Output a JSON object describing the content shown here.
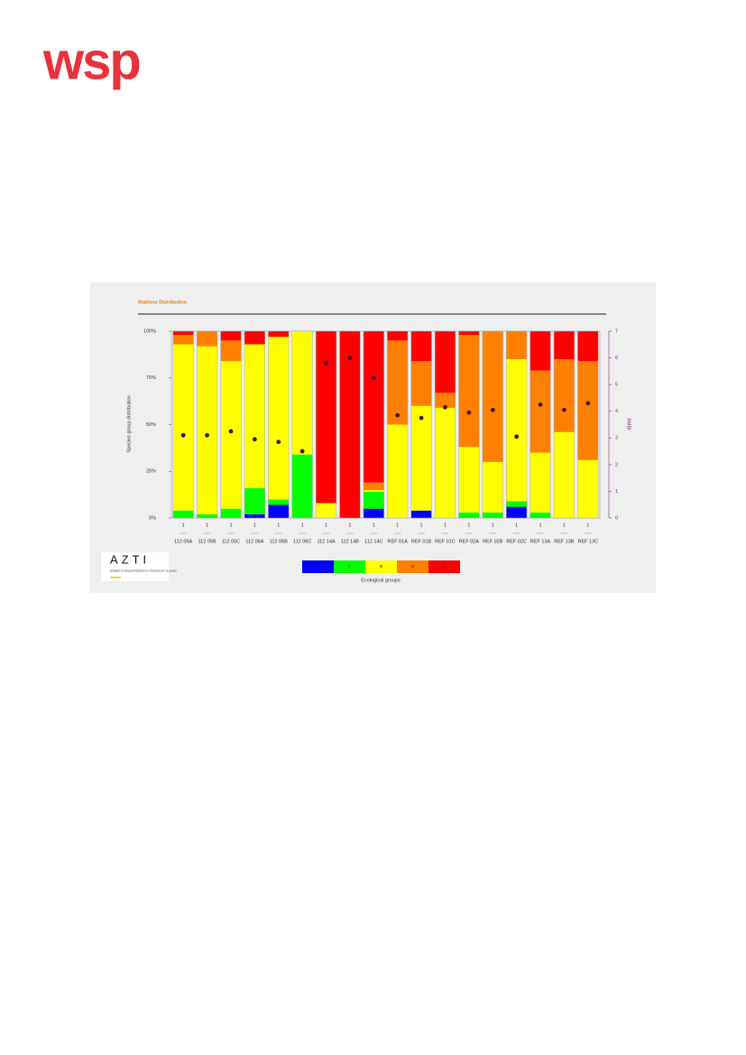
{
  "logos": {
    "wsp": "wsp",
    "azti": "AZTI",
    "azti_tagline": "MEMBER OF BASQUE RESEARCH & TECHNOLOGY ALLIANCE"
  },
  "chart_data": {
    "type": "stacked-bar",
    "title": "Stations Distribution",
    "y_label": "Species group distribution",
    "y2_label": "AMBI",
    "legend_title": "Ecological groups",
    "categories": [
      "112 05A",
      "112 05B",
      "112 05C",
      "112 06A",
      "112 06B",
      "112 06C",
      "112 14A",
      "112 14B",
      "112 14C",
      "REF 01A",
      "REF 01B",
      "REF 01C",
      "REF 02A",
      "REF 02B",
      "REF 02C",
      "REF 13A",
      "REF 13B",
      "REF 13C"
    ],
    "counts": [
      1,
      1,
      1,
      1,
      1,
      1,
      1,
      1,
      1,
      1,
      1,
      1,
      1,
      1,
      1,
      1,
      1,
      1
    ],
    "series": [
      {
        "name": "I",
        "color": "#0000ff",
        "values": [
          0,
          0,
          0,
          2,
          7,
          0,
          0,
          0,
          5,
          0,
          4,
          0,
          0,
          0,
          6,
          0,
          0,
          0
        ]
      },
      {
        "name": "II",
        "color": "#00ff00",
        "values": [
          4,
          2,
          5,
          14,
          3,
          34,
          0,
          0,
          9,
          0,
          0,
          0,
          3,
          3,
          3,
          3,
          0,
          0
        ]
      },
      {
        "name": "III",
        "color": "#ffff00",
        "values": [
          89,
          90,
          79,
          77,
          87,
          66,
          8,
          0,
          1,
          50,
          56,
          59,
          35,
          27,
          76,
          32,
          46,
          31
        ]
      },
      {
        "name": "IV",
        "color": "#ff8000",
        "values": [
          5,
          8,
          11,
          0,
          0,
          0,
          0,
          0,
          4,
          45,
          24,
          8,
          60,
          70,
          15,
          44,
          39,
          53
        ]
      },
      {
        "name": "V",
        "color": "#ff0000",
        "values": [
          2,
          0,
          5,
          7,
          3,
          0,
          92,
          100,
          81,
          5,
          16,
          33,
          2,
          0,
          0,
          21,
          15,
          16
        ]
      }
    ],
    "ambi": {
      "axis": "y2",
      "color": "#4a1030",
      "values": [
        3.1,
        3.1,
        3.25,
        2.95,
        2.85,
        2.5,
        5.8,
        6.0,
        5.25,
        3.85,
        3.75,
        4.15,
        3.95,
        4.05,
        3.05,
        4.25,
        4.05,
        4.3
      ]
    },
    "ylim": [
      0,
      100
    ],
    "yticks": [
      {
        "value": 0,
        "label": "0%"
      },
      {
        "value": 25,
        "label": "25%"
      },
      {
        "value": 50,
        "label": "50%"
      },
      {
        "value": 75,
        "label": "75%"
      },
      {
        "value": 100,
        "label": "100%"
      }
    ],
    "y2lim": [
      0,
      7
    ],
    "y2ticks": [
      0,
      1,
      2,
      3,
      4,
      5,
      6,
      7
    ]
  }
}
